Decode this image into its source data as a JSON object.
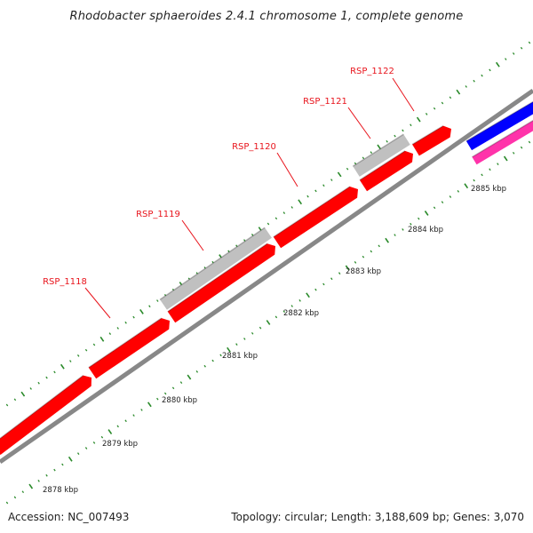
{
  "title": "Rhodobacter sphaeroides 2.4.1 chromosome 1, complete genome",
  "footer": {
    "accession": "Accession: NC_007493",
    "summary": "Topology: circular; Length: 3,188,609 bp; Genes: 3,070"
  },
  "colors": {
    "gene_forward": "#ff0000",
    "feature_gray": "#c0c0c0",
    "backbone": "#888888",
    "tick": "#2a8a2a",
    "label": "#e8141c",
    "blue_feature": "#0000ff",
    "magenta_feature": "#ff33aa"
  },
  "gene_labels": [
    "RSP_1118",
    "RSP_1119",
    "RSP_1120",
    "RSP_1121",
    "RSP_1122"
  ],
  "scale_labels": [
    "2878 kbp",
    "2879 kbp",
    "2880 kbp",
    "2881 kbp",
    "2882 kbp",
    "2883 kbp",
    "2884 kbp",
    "2885 kbp"
  ]
}
